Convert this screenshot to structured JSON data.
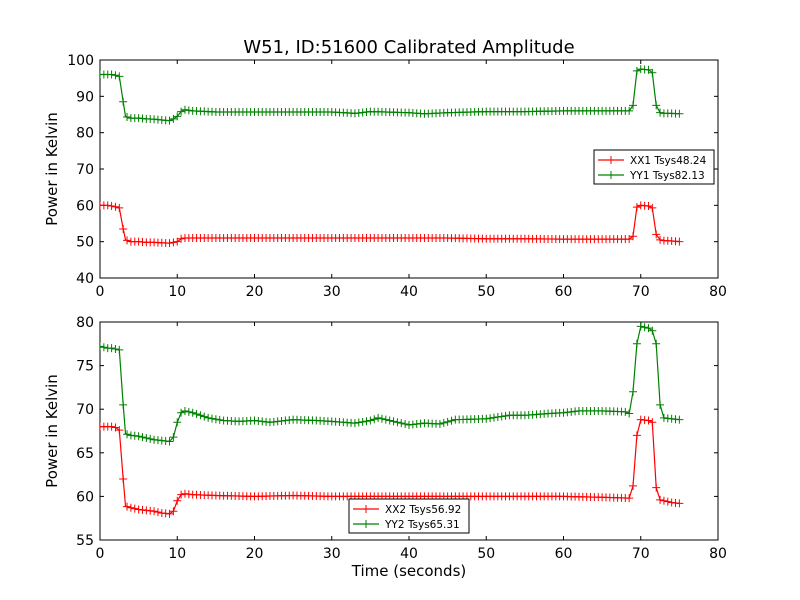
{
  "figure": {
    "title": "W51, ID:51600 Calibrated Amplitude",
    "background": "#ffffff"
  },
  "chart_data": [
    {
      "type": "line",
      "title": "W51, ID:51600 Calibrated Amplitude",
      "xlabel": "",
      "ylabel": "Power in Kelvin",
      "xlim": [
        0,
        80
      ],
      "ylim": [
        40,
        100
      ],
      "xticks": [
        0,
        10,
        20,
        30,
        40,
        50,
        60,
        70,
        80
      ],
      "yticks": [
        40,
        50,
        60,
        70,
        80,
        90,
        100
      ],
      "grid": false,
      "legend_position": "right",
      "markers": "plus",
      "series": [
        {
          "name": "XX1 Tsys48.24",
          "color": "#ff0000",
          "x": [
            0.0,
            0.5,
            1.0,
            1.5,
            2.0,
            2.5,
            3.0,
            3.3,
            3.6,
            4.0,
            5.0,
            6.0,
            7.0,
            8.0,
            9.0,
            9.5,
            10.0,
            10.5,
            11.0,
            15.0,
            20.0,
            25.0,
            30.0,
            35.0,
            40.0,
            45.0,
            50.0,
            55.0,
            60.0,
            65.0,
            68.5,
            69.0,
            69.5,
            70.0,
            71.0,
            71.5,
            72.0,
            72.5,
            73.0,
            74.0,
            75.0
          ],
          "y": [
            60.0,
            60.0,
            60.0,
            59.8,
            59.6,
            59.3,
            53.5,
            50.5,
            50.3,
            50.0,
            50.0,
            49.8,
            49.8,
            49.7,
            49.6,
            49.8,
            50.0,
            50.8,
            51.0,
            51.0,
            51.0,
            51.0,
            51.0,
            51.0,
            51.0,
            51.0,
            50.8,
            50.8,
            50.7,
            50.7,
            50.7,
            51.5,
            59.5,
            60.0,
            59.8,
            59.3,
            52.0,
            50.5,
            50.3,
            50.2,
            50.0
          ]
        },
        {
          "name": "YY1 Tsys82.13",
          "color": "#008000",
          "x": [
            0.0,
            0.5,
            1.0,
            1.5,
            2.0,
            2.5,
            3.0,
            3.3,
            3.6,
            4.0,
            5.0,
            6.0,
            7.0,
            8.0,
            9.0,
            9.5,
            10.0,
            10.5,
            11.0,
            12.0,
            15.0,
            20.0,
            25.0,
            30.0,
            33.0,
            35.0,
            40.0,
            42.0,
            45.0,
            50.0,
            55.0,
            60.0,
            65.0,
            68.5,
            69.0,
            69.5,
            70.0,
            71.0,
            71.5,
            72.0,
            72.5,
            73.0,
            74.0,
            75.0
          ],
          "y": [
            96.0,
            96.0,
            96.0,
            96.0,
            95.8,
            95.5,
            88.5,
            84.5,
            84.2,
            84.0,
            84.0,
            83.8,
            83.7,
            83.5,
            83.3,
            83.8,
            84.5,
            85.8,
            86.3,
            86.0,
            85.7,
            85.7,
            85.7,
            85.7,
            85.3,
            85.8,
            85.5,
            85.2,
            85.5,
            85.8,
            85.8,
            86.0,
            86.0,
            86.0,
            87.5,
            97.0,
            97.5,
            97.3,
            96.5,
            87.5,
            85.5,
            85.3,
            85.3,
            85.2
          ]
        }
      ]
    },
    {
      "type": "line",
      "title": "",
      "xlabel": "Time (seconds)",
      "ylabel": "Power in Kelvin",
      "xlim": [
        0,
        80
      ],
      "ylim": [
        55,
        80
      ],
      "xticks": [
        0,
        10,
        20,
        30,
        40,
        50,
        60,
        70,
        80
      ],
      "yticks": [
        55,
        60,
        65,
        70,
        75,
        80
      ],
      "grid": false,
      "legend_position": "bottom-center",
      "markers": "plus",
      "series": [
        {
          "name": "XX2 Tsys56.92",
          "color": "#ff0000",
          "x": [
            0.0,
            0.5,
            1.0,
            1.5,
            2.0,
            2.5,
            3.0,
            3.3,
            3.6,
            4.0,
            5.0,
            6.0,
            7.0,
            8.0,
            9.0,
            9.5,
            10.0,
            10.5,
            11.0,
            12.0,
            15.0,
            20.0,
            25.0,
            30.0,
            35.0,
            40.0,
            45.0,
            50.0,
            55.0,
            60.0,
            65.0,
            68.5,
            69.0,
            69.5,
            70.0,
            71.0,
            71.5,
            72.0,
            72.5,
            73.0,
            74.0,
            75.0
          ],
          "y": [
            68.0,
            68.0,
            68.0,
            68.0,
            67.9,
            67.6,
            62.0,
            58.9,
            58.8,
            58.7,
            58.5,
            58.4,
            58.3,
            58.1,
            58.0,
            58.3,
            59.5,
            60.2,
            60.3,
            60.2,
            60.1,
            60.0,
            60.1,
            60.0,
            60.0,
            60.0,
            60.0,
            60.0,
            60.0,
            60.0,
            59.9,
            59.8,
            61.2,
            67.0,
            68.8,
            68.7,
            68.5,
            61.0,
            59.6,
            59.5,
            59.3,
            59.2
          ]
        },
        {
          "name": "YY2 Tsys65.31",
          "color": "#008000",
          "x": [
            0.0,
            0.5,
            1.0,
            1.5,
            2.0,
            2.5,
            3.0,
            3.3,
            3.6,
            4.0,
            5.0,
            6.0,
            7.0,
            8.0,
            9.0,
            9.5,
            10.0,
            10.5,
            11.0,
            12.0,
            14.0,
            16.0,
            18.0,
            20.0,
            22.0,
            25.0,
            28.0,
            30.0,
            33.0,
            35.0,
            36.0,
            38.0,
            40.0,
            42.0,
            44.0,
            46.0,
            50.0,
            53.0,
            55.0,
            58.0,
            60.0,
            62.0,
            65.0,
            68.0,
            68.5,
            69.0,
            69.5,
            70.0,
            71.0,
            71.5,
            72.0,
            72.5,
            73.0,
            74.0,
            75.0
          ],
          "y": [
            77.2,
            77.1,
            77.0,
            77.0,
            76.9,
            76.8,
            70.5,
            67.2,
            67.1,
            67.0,
            66.9,
            66.7,
            66.5,
            66.4,
            66.3,
            66.8,
            68.5,
            69.6,
            69.8,
            69.6,
            69.0,
            68.7,
            68.6,
            68.7,
            68.5,
            68.8,
            68.7,
            68.6,
            68.4,
            68.7,
            69.0,
            68.6,
            68.2,
            68.4,
            68.3,
            68.8,
            68.9,
            69.3,
            69.3,
            69.5,
            69.6,
            69.8,
            69.8,
            69.7,
            69.5,
            72.0,
            77.5,
            79.5,
            79.3,
            79.0,
            77.5,
            70.5,
            69.0,
            68.9,
            68.8
          ]
        }
      ]
    }
  ]
}
